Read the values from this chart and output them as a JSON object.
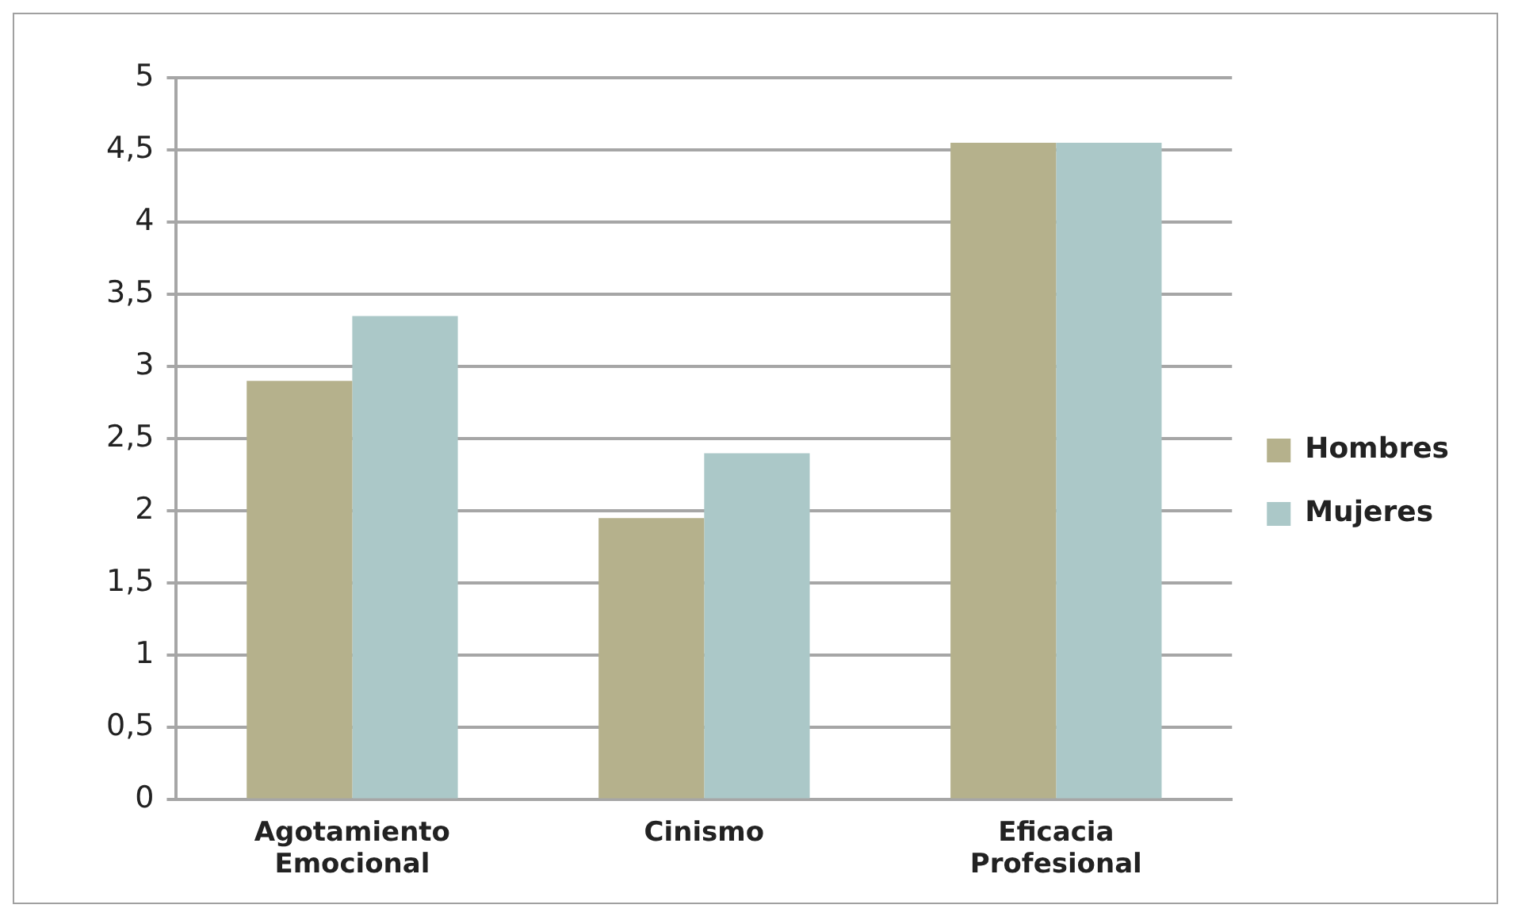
{
  "chart_data": {
    "type": "bar",
    "categories": [
      [
        "Agotamiento",
        "Emocional"
      ],
      "Cinismo",
      [
        "Eficacia",
        "Profesional"
      ]
    ],
    "series": [
      {
        "name": "Hombres",
        "color": "#b5b18c",
        "values": [
          2.9,
          1.95,
          4.55
        ]
      },
      {
        "name": "Mujeres",
        "color": "#abc8c8",
        "values": [
          3.35,
          2.4,
          4.55
        ]
      }
    ],
    "ylim": [
      0,
      5
    ],
    "yticks": [
      0,
      {
        "value": 0.5,
        "label": "0,5"
      },
      1,
      {
        "value": 1.5,
        "label": "1,5"
      },
      2,
      {
        "value": 2.5,
        "label": "2,5"
      },
      3,
      {
        "value": 3.5,
        "label": "3,5"
      },
      4,
      {
        "value": 4.5,
        "label": "4,5"
      },
      5
    ],
    "grid": "y",
    "legend": "right"
  }
}
